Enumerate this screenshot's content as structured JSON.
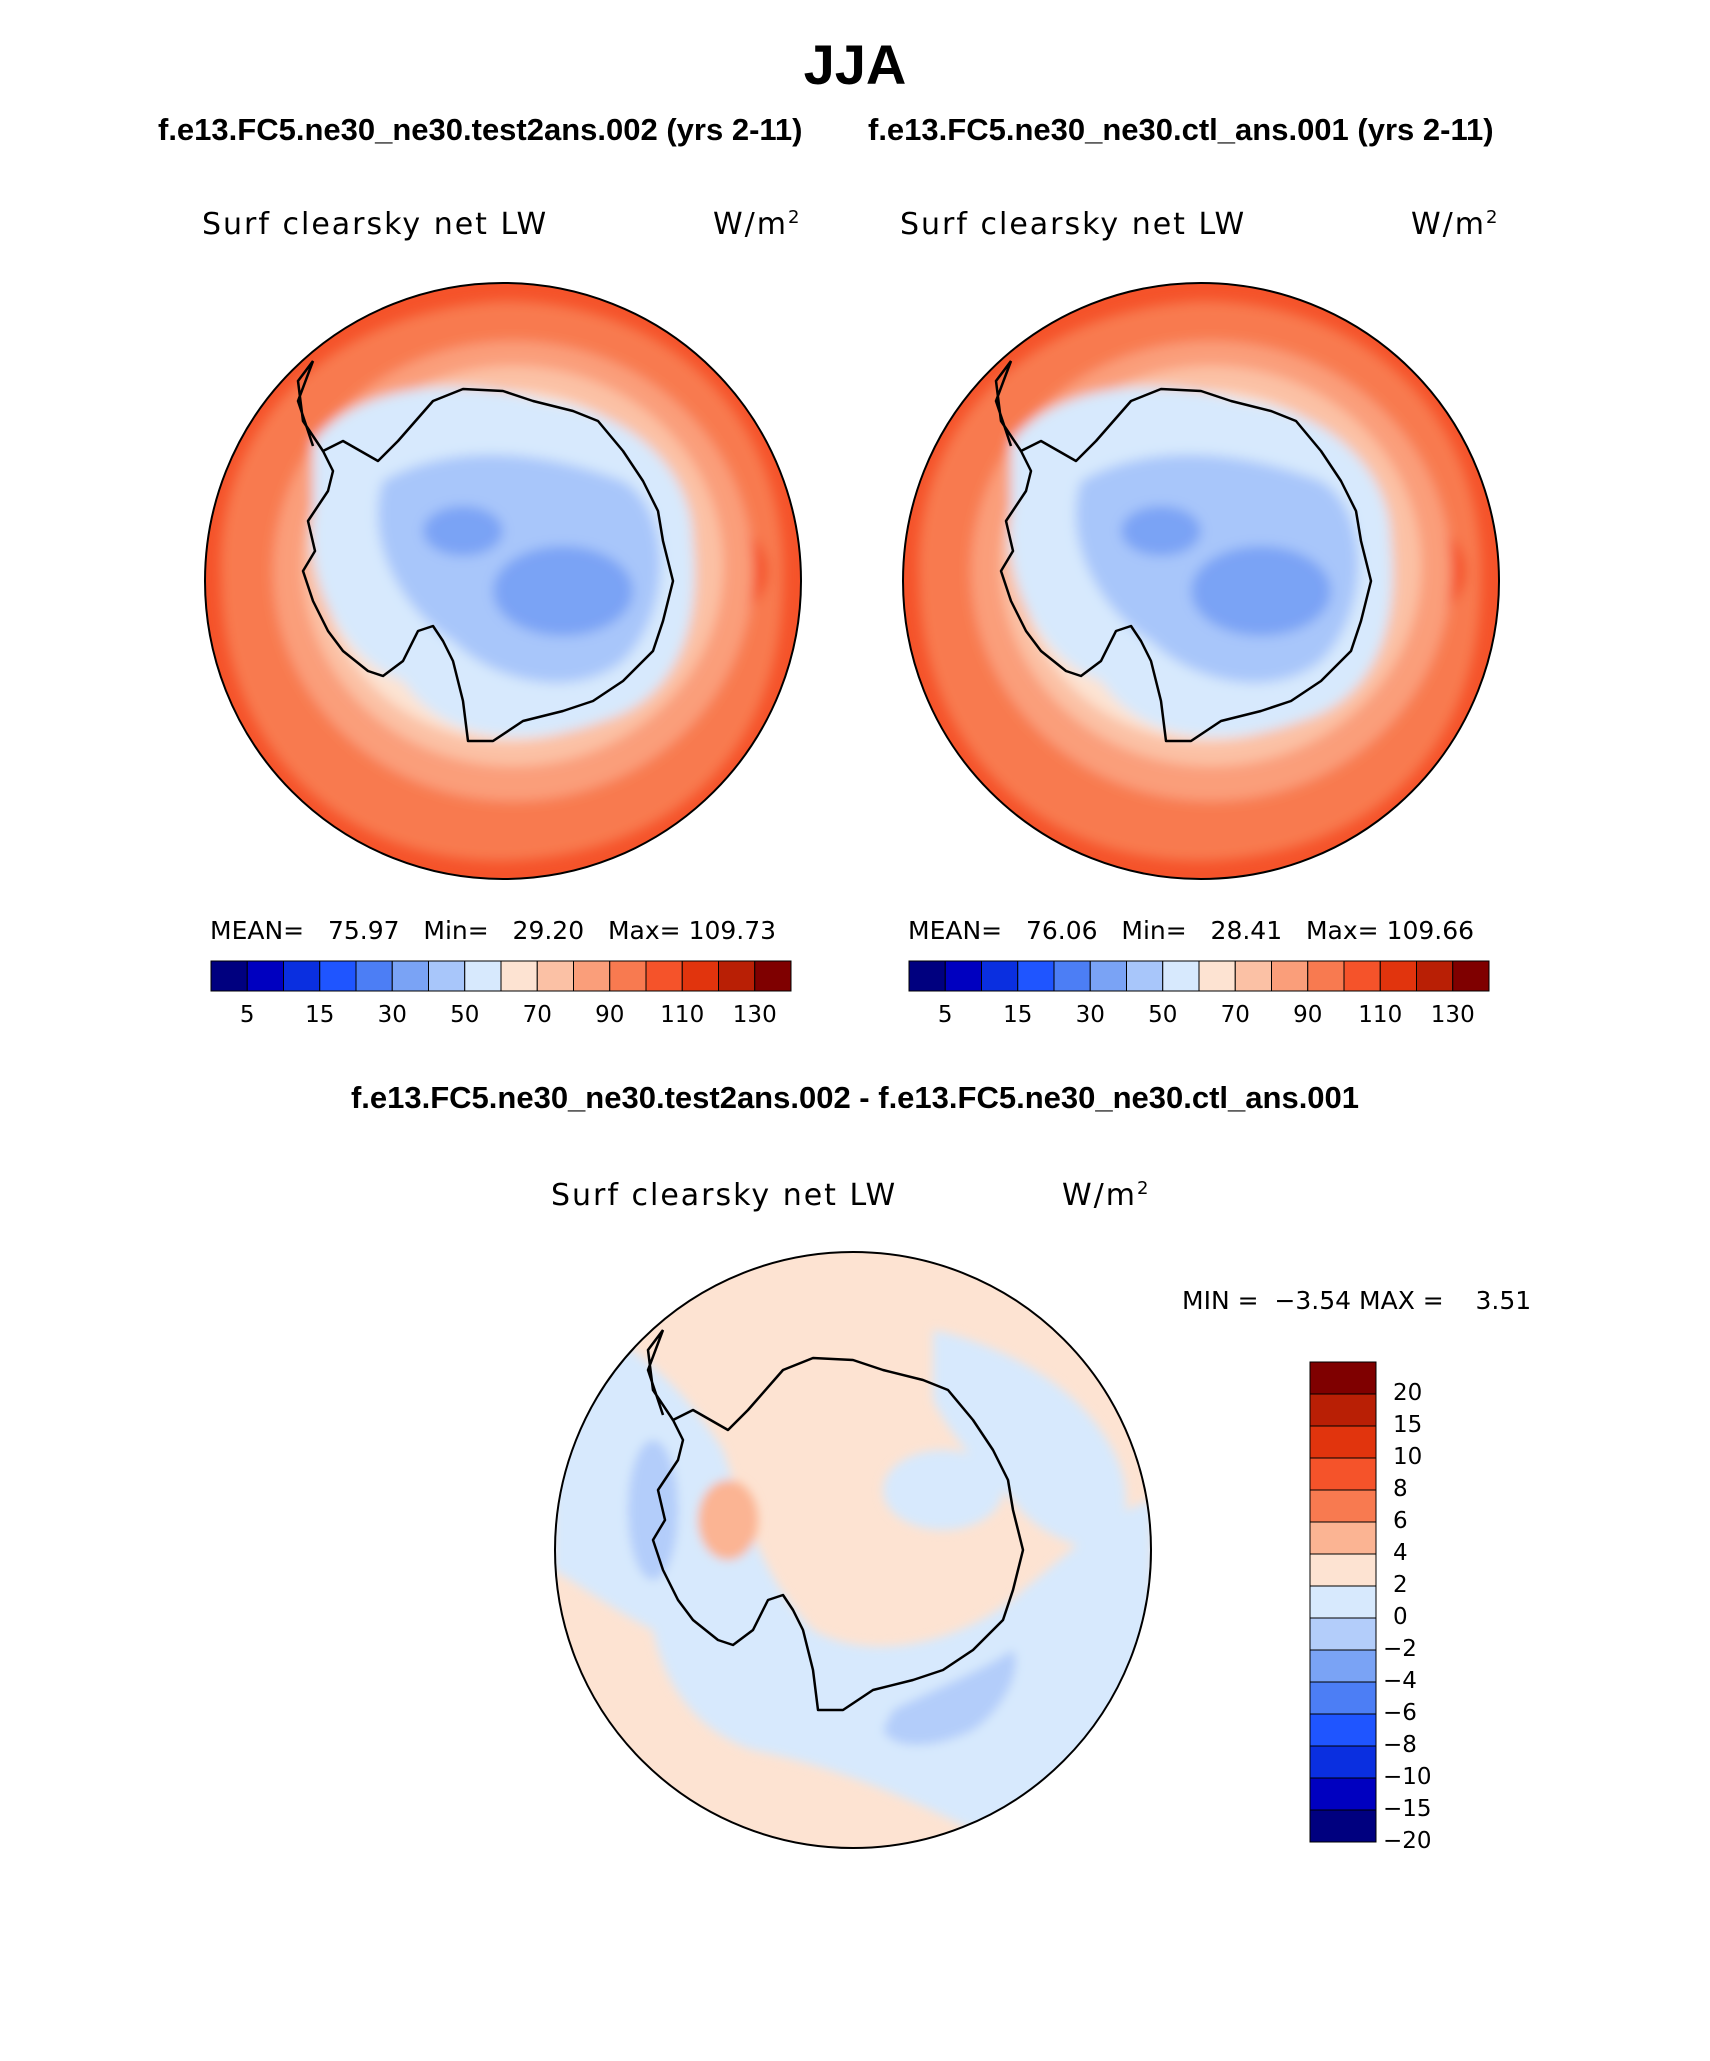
{
  "title": "JJA",
  "case1_title": "f.e13.FC5.ne30_ne30.test2ans.002 (yrs 2-11)",
  "case2_title": "f.e13.FC5.ne30_ne30.ctl_ans.001 (yrs 2-11)",
  "diff_title": "f.e13.FC5.ne30_ne30.test2ans.002 - f.e13.FC5.ne30_ne30.ctl_ans.001",
  "panels": [
    {
      "variable": "Surf clearsky net LW",
      "units_base": "W/m",
      "units_exp": "2",
      "mean_label": "MEAN=",
      "mean": "75.97",
      "min_label": "Min=",
      "min": "29.20",
      "max_label": "Max=",
      "max": "109.73"
    },
    {
      "variable": "Surf clearsky net LW",
      "units_base": "W/m",
      "units_exp": "2",
      "mean_label": "MEAN=",
      "mean": "76.06",
      "min_label": "Min=",
      "min": "28.41",
      "max_label": "Max=",
      "max": "109.66"
    },
    {
      "variable": "Surf clearsky net LW",
      "units_base": "W/m",
      "units_exp": "2",
      "min_label": "MIN =",
      "min": "−3.54",
      "max_label": "MAX =",
      "max": "3.51"
    }
  ],
  "colorbar_abs": {
    "colors": [
      "#00007f",
      "#0000c0",
      "#0a2fe0",
      "#1f55ff",
      "#4c7ef5",
      "#7aa3f5",
      "#a8c6fa",
      "#d7e9fd",
      "#fde3d2",
      "#fbc1a5",
      "#fa9e7a",
      "#f87a50",
      "#f5532a",
      "#e1340d",
      "#b91f05",
      "#7f0000"
    ],
    "tick_labels": [
      "5",
      "15",
      "30",
      "50",
      "70",
      "90",
      "110",
      "130"
    ]
  },
  "colorbar_diff": {
    "colors": [
      "#7f0000",
      "#b91f05",
      "#e1340d",
      "#f5532a",
      "#f87a50",
      "#fbb493",
      "#fde3d2",
      "#d7e9fd",
      "#b3cdfa",
      "#7aa3f5",
      "#4c7ef5",
      "#1f55ff",
      "#0a2fe0",
      "#0000c0",
      "#00007f"
    ],
    "tick_labels": [
      "20",
      "15",
      "10",
      "8",
      "6",
      "4",
      "2",
      "0",
      "−2",
      "−4",
      "−6",
      "−8",
      "−10",
      "−15",
      "−20"
    ]
  }
}
